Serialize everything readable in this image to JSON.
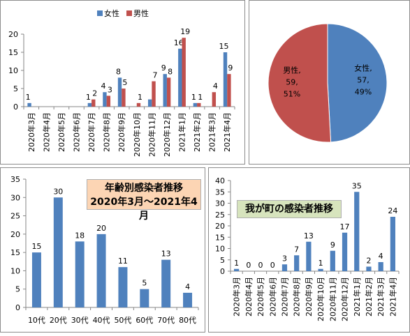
{
  "chart_data": [
    {
      "type": "bar",
      "title": "",
      "categories": [
        "2020年3月",
        "2020年4月",
        "2020年5月",
        "2020年6月",
        "2020年7月",
        "2020年8月",
        "2020年9月",
        "2020年10月",
        "2020年11月",
        "2020年12月",
        "2021年1月",
        "2021年2月",
        "2021年3月",
        "2021年4月"
      ],
      "series": [
        {
          "name": "女性",
          "color": "#4f81bd",
          "values": [
            1,
            0,
            0,
            0,
            1,
            4,
            8,
            0,
            2,
            9,
            16,
            1,
            0,
            15
          ]
        },
        {
          "name": "男性",
          "color": "#c0504d",
          "values": [
            0,
            0,
            0,
            0,
            2,
            3,
            5,
            1,
            7,
            8,
            19,
            1,
            4,
            9
          ]
        }
      ],
      "data_labels": {
        "女性": [
          "1",
          "",
          "",
          "",
          "1",
          "4",
          "8",
          "",
          "",
          "9",
          "16",
          "1",
          "",
          "15"
        ],
        "男性": [
          "",
          "",
          "",
          "",
          "2",
          "3",
          "5",
          "1",
          "7",
          "8",
          "19",
          "1",
          "4",
          "9"
        ]
      },
      "yticks": [
        "0",
        "5",
        "10",
        "15",
        "20"
      ],
      "ylim": [
        0,
        20
      ],
      "grid": false,
      "legend": "top"
    },
    {
      "type": "pie",
      "slices": [
        {
          "name": "女性",
          "value": 57,
          "percent": "49%",
          "color": "#4f81bd",
          "label": [
            "女性,",
            "57,",
            "49%"
          ]
        },
        {
          "name": "男性",
          "value": 59,
          "percent": "51%",
          "color": "#c0504d",
          "label": [
            "男性,",
            "59,",
            "51%"
          ]
        }
      ]
    },
    {
      "type": "bar",
      "title": [
        "年齢別感染者推移",
        "2020年3月～2021年4月"
      ],
      "categories": [
        "10代",
        "20代",
        "30代",
        "40代",
        "50代",
        "60代",
        "70代",
        "80代"
      ],
      "values": [
        15,
        30,
        18,
        20,
        11,
        5,
        13,
        4
      ],
      "color": "#4f81bd",
      "title_bg": "#fcd5b4",
      "yticks": [
        "0",
        "5",
        "10",
        "15",
        "20",
        "25",
        "30",
        "35"
      ],
      "ylim": [
        0,
        35
      ],
      "grid": false
    },
    {
      "type": "bar",
      "title": "我が町の感染者推移",
      "categories": [
        "2020年3月",
        "2020年4月",
        "2020年5月",
        "2020年6月",
        "2020年7月",
        "2020年8月",
        "2020年9月",
        "2020年10月",
        "2020年11月",
        "2020年12月",
        "2021年1月",
        "2021年2月",
        "2021年3月",
        "2021年4月"
      ],
      "values": [
        1,
        0,
        0,
        0,
        3,
        7,
        13,
        1,
        9,
        17,
        35,
        2,
        4,
        24
      ],
      "color": "#4f81bd",
      "title_bg": "#d7e4bd",
      "yticks": [
        "0",
        "5",
        "10",
        "15",
        "20",
        "25",
        "30",
        "35",
        "40"
      ],
      "ylim": [
        0,
        40
      ],
      "grid": false
    }
  ]
}
